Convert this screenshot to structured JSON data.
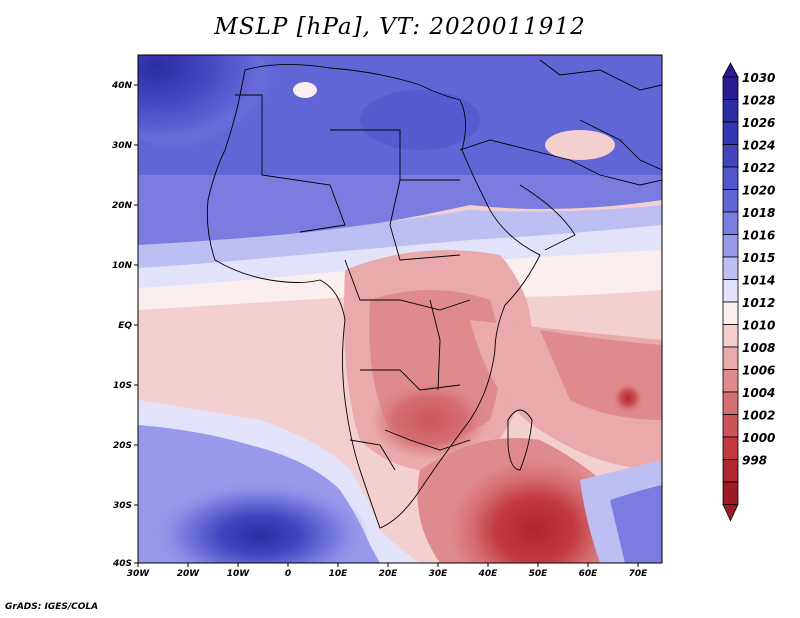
{
  "title": "MSLP [hPa], VT: 2020011912",
  "credit": "GrADS: IGES/COLA",
  "lat_ticks": [
    "40N",
    "30N",
    "20N",
    "10N",
    "EQ",
    "10S",
    "20S",
    "30S",
    "40S"
  ],
  "lon_ticks": [
    "30W",
    "20W",
    "10W",
    "0",
    "10E",
    "20E",
    "30E",
    "40E",
    "50E",
    "60E",
    "70E"
  ],
  "colorbar": {
    "labels": [
      "1030",
      "1028",
      "1026",
      "1024",
      "1022",
      "1020",
      "1018",
      "1016",
      "1015",
      "1014",
      "1012",
      "1010",
      "1008",
      "1006",
      "1004",
      "1002",
      "1000",
      "998"
    ],
    "colors": [
      "#2a1a94",
      "#2c2ca4",
      "#3536b3",
      "#4244bf",
      "#5255cb",
      "#6265d6",
      "#7a7ce0",
      "#9899ea",
      "#bdbff3",
      "#e2e3fa",
      "#fbeeee",
      "#f4cfcf",
      "#eaa9aa",
      "#df8a8c",
      "#d56e72",
      "#cc555a",
      "#c1393f",
      "#b02630",
      "#9f1a24"
    ],
    "min_color": "#9f1a24",
    "max_color": "#2a1a94"
  }
}
